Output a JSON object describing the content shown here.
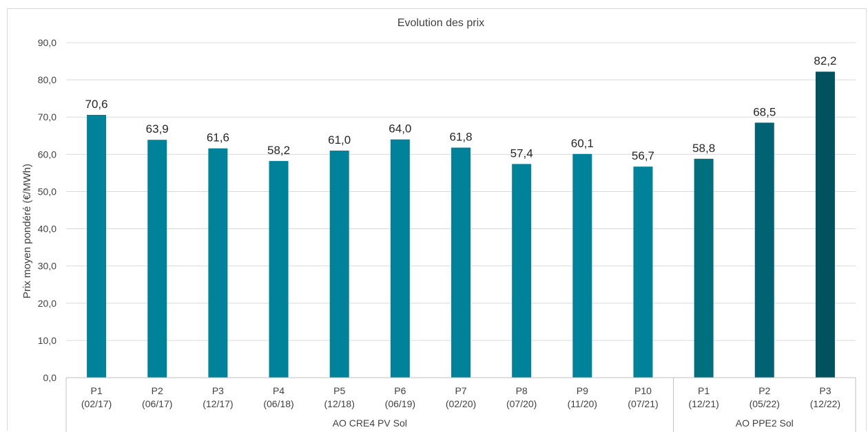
{
  "chart_data": {
    "type": "bar",
    "title": "Evolution des prix",
    "ylabel": "Prix moyen pondéré  (€/MWh)",
    "xlabel": "",
    "ylim": [
      0,
      90
    ],
    "yticks": [
      "0,0",
      "10,0",
      "20,0",
      "30,0",
      "40,0",
      "50,0",
      "60,0",
      "70,0",
      "80,0",
      "90,0"
    ],
    "grid": true,
    "bars": [
      {
        "line1": "P1",
        "line2": "(02/17)",
        "value": 70.6,
        "label": "70,6",
        "color": "#00829a"
      },
      {
        "line1": "P2",
        "line2": "(06/17)",
        "value": 63.9,
        "label": "63,9",
        "color": "#00829a"
      },
      {
        "line1": "P3",
        "line2": "(12/17)",
        "value": 61.6,
        "label": "61,6",
        "color": "#00829a"
      },
      {
        "line1": "P4",
        "line2": "(06/18)",
        "value": 58.2,
        "label": "58,2",
        "color": "#00829a"
      },
      {
        "line1": "P5",
        "line2": "(12/18)",
        "value": 61.0,
        "label": "61,0",
        "color": "#00829a"
      },
      {
        "line1": "P6",
        "line2": "(06/19)",
        "value": 64.0,
        "label": "64,0",
        "color": "#00829a"
      },
      {
        "line1": "P7",
        "line2": "(02/20)",
        "value": 61.8,
        "label": "61,8",
        "color": "#00829a"
      },
      {
        "line1": "P8",
        "line2": "(07/20)",
        "value": 57.4,
        "label": "57,4",
        "color": "#00829a"
      },
      {
        "line1": "P9",
        "line2": "(11/20)",
        "value": 60.1,
        "label": "60,1",
        "color": "#00829a"
      },
      {
        "line1": "P10",
        "line2": "(07/21)",
        "value": 56.7,
        "label": "56,7",
        "color": "#00829a"
      },
      {
        "line1": "P1",
        "line2": "(12/21)",
        "value": 58.8,
        "label": "58,8",
        "color": "#00707f"
      },
      {
        "line1": "P2",
        "line2": "(05/22)",
        "value": 68.5,
        "label": "68,5",
        "color": "#006272"
      },
      {
        "line1": "P3",
        "line2": "(12/22)",
        "value": 82.2,
        "label": "82,2",
        "color": "#00525e"
      }
    ],
    "groups": [
      {
        "name": "AO CRE4 PV Sol",
        "count": 10
      },
      {
        "name": "AO PPE2 Sol",
        "count": 3
      }
    ]
  }
}
